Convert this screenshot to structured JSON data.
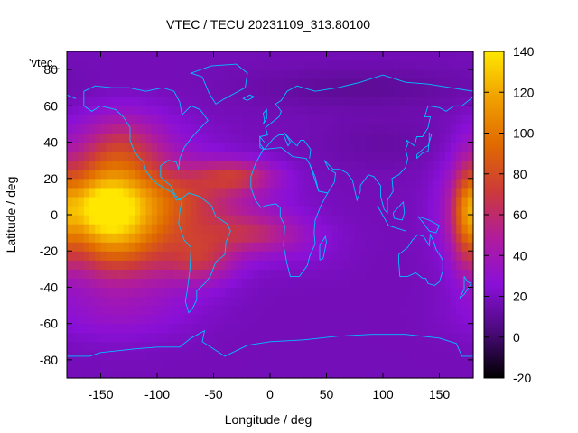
{
  "chart_data": {
    "type": "heatmap",
    "title": "VTEC / TECU 20231109_313.80100",
    "xlabel": "Longitude / deg",
    "ylabel": "Latitude / deg",
    "key_label": "'vtec_",
    "xlim": [
      -180,
      180
    ],
    "ylim": [
      -90,
      90
    ],
    "x_ticks": [
      -150,
      -100,
      -50,
      0,
      50,
      100,
      150
    ],
    "y_ticks": [
      -80,
      -60,
      -40,
      -20,
      0,
      20,
      40,
      60,
      80
    ],
    "colorbar": {
      "range": [
        -20,
        140
      ],
      "ticks": [
        -20,
        0,
        20,
        40,
        60,
        80,
        100,
        120,
        140
      ],
      "palette": [
        "#000000",
        "#4a0a7a",
        "#8a10d8",
        "#b01c9c",
        "#cc3a3a",
        "#e06a00",
        "#f0a000",
        "#ffe700"
      ]
    },
    "field": {
      "background": 18,
      "features": [
        {
          "lon": -145,
          "lat": 2,
          "sigma_lon": 30,
          "sigma_lat": 22,
          "value": 98
        },
        {
          "lon": -160,
          "lat": 5,
          "sigma_lon": 20,
          "sigma_lat": 10,
          "value": 20
        },
        {
          "lon": -100,
          "lat": -2,
          "sigma_lon": 40,
          "sigma_lat": 25,
          "value": 45
        },
        {
          "lon": -60,
          "lat": 10,
          "sigma_lon": 45,
          "sigma_lat": 10,
          "value": 22
        },
        {
          "lon": -30,
          "lat": 22,
          "sigma_lon": 25,
          "sigma_lat": 6,
          "value": 40
        },
        {
          "lon": -20,
          "lat": -10,
          "sigma_lon": 35,
          "sigma_lat": 8,
          "value": 38
        },
        {
          "lon": -60,
          "lat": -25,
          "sigma_lon": 20,
          "sigma_lat": 8,
          "value": 30
        },
        {
          "lon": 175,
          "lat": 0,
          "sigma_lon": 10,
          "sigma_lat": 20,
          "value": 45
        },
        {
          "lon": -130,
          "lat": 40,
          "sigma_lon": 25,
          "sigma_lat": 12,
          "value": 25
        },
        {
          "lon": 80,
          "lat": 70,
          "sigma_lon": 70,
          "sigma_lat": 8,
          "value": -8
        },
        {
          "lon": 100,
          "lat": 40,
          "sigma_lon": 40,
          "sigma_lat": 10,
          "value": -5
        },
        {
          "lon": 30,
          "lat": -20,
          "sigma_lon": 30,
          "sigma_lat": 10,
          "value": 4
        },
        {
          "lon": -140,
          "lat": -55,
          "sigma_lon": 40,
          "sigma_lat": 10,
          "value": 10
        }
      ]
    },
    "coastline_color": "#00c0ff"
  }
}
